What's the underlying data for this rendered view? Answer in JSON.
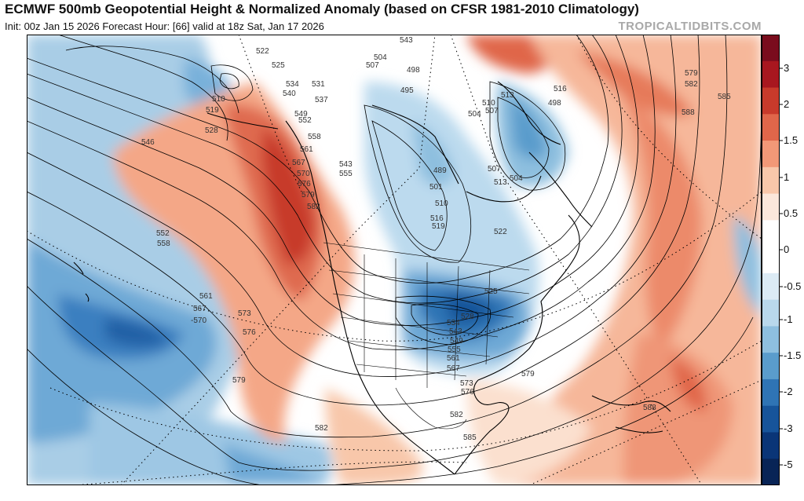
{
  "header": {
    "title": "ECMWF 500mb Geopotential Height & Normalized Anomaly (based on CFSR 1981-2010 Climatology)",
    "subtitle": "Init: 00z Jan 15 2026   Forecast Hour: [66]   valid at 18z Sat, Jan 17 2026",
    "watermark": "TROPICALTIDBITS.COM"
  },
  "colorbar": {
    "labels": [
      "3",
      "2",
      "1.5",
      "1",
      "0.5",
      "0",
      "-0.5",
      "-1",
      "-1.5",
      "-2",
      "-3",
      "-5"
    ],
    "colors": [
      "#7a0c1d",
      "#a8171f",
      "#c83a2b",
      "#e0664a",
      "#f29877",
      "#f8c7aa",
      "#fbe7db",
      "#ffffff",
      "#ffffff",
      "#dcebf5",
      "#b9d8ec",
      "#8ebfdf",
      "#5a9ccc",
      "#2f74b5",
      "#17549a",
      "#0a3577",
      "#082456"
    ]
  },
  "contour_labels": [
    {
      "t": "522"
    },
    {
      "t": "525"
    },
    {
      "t": "543"
    },
    {
      "t": "504"
    },
    {
      "t": "507"
    },
    {
      "t": "498"
    },
    {
      "t": "534"
    },
    {
      "t": "531"
    },
    {
      "t": "540"
    },
    {
      "t": "537"
    },
    {
      "t": "510"
    },
    {
      "t": "519"
    },
    {
      "t": "549"
    },
    {
      "t": "552"
    },
    {
      "t": "528"
    },
    {
      "t": "495"
    },
    {
      "t": "516"
    },
    {
      "t": "498"
    },
    {
      "t": "513"
    },
    {
      "t": "510"
    },
    {
      "t": "507"
    },
    {
      "t": "504"
    },
    {
      "t": "579"
    },
    {
      "t": "582"
    },
    {
      "t": "585"
    },
    {
      "t": "588"
    },
    {
      "t": "546"
    },
    {
      "t": "558"
    },
    {
      "t": "561"
    },
    {
      "t": "567"
    },
    {
      "t": "570"
    },
    {
      "t": "576"
    },
    {
      "t": "579"
    },
    {
      "t": "582"
    },
    {
      "t": "543"
    },
    {
      "t": "555"
    },
    {
      "t": "489"
    },
    {
      "t": "501"
    },
    {
      "t": "507"
    },
    {
      "t": "513"
    },
    {
      "t": "504"
    },
    {
      "t": "510"
    },
    {
      "t": "516"
    },
    {
      "t": "519"
    },
    {
      "t": "522"
    },
    {
      "t": "552"
    },
    {
      "t": "558"
    },
    {
      "t": "561"
    },
    {
      "t": "567"
    },
    {
      "t": "-570"
    },
    {
      "t": "573"
    },
    {
      "t": "576"
    },
    {
      "t": "525"
    },
    {
      "t": "528"
    },
    {
      "t": "534"
    },
    {
      "t": "543"
    },
    {
      "t": "549"
    },
    {
      "t": "555"
    },
    {
      "t": "561"
    },
    {
      "t": "567"
    },
    {
      "t": "573"
    },
    {
      "t": "576"
    },
    {
      "t": "579"
    },
    {
      "t": "579"
    },
    {
      "t": "582"
    },
    {
      "t": "585"
    },
    {
      "t": "582"
    },
    {
      "t": "588"
    }
  ]
}
